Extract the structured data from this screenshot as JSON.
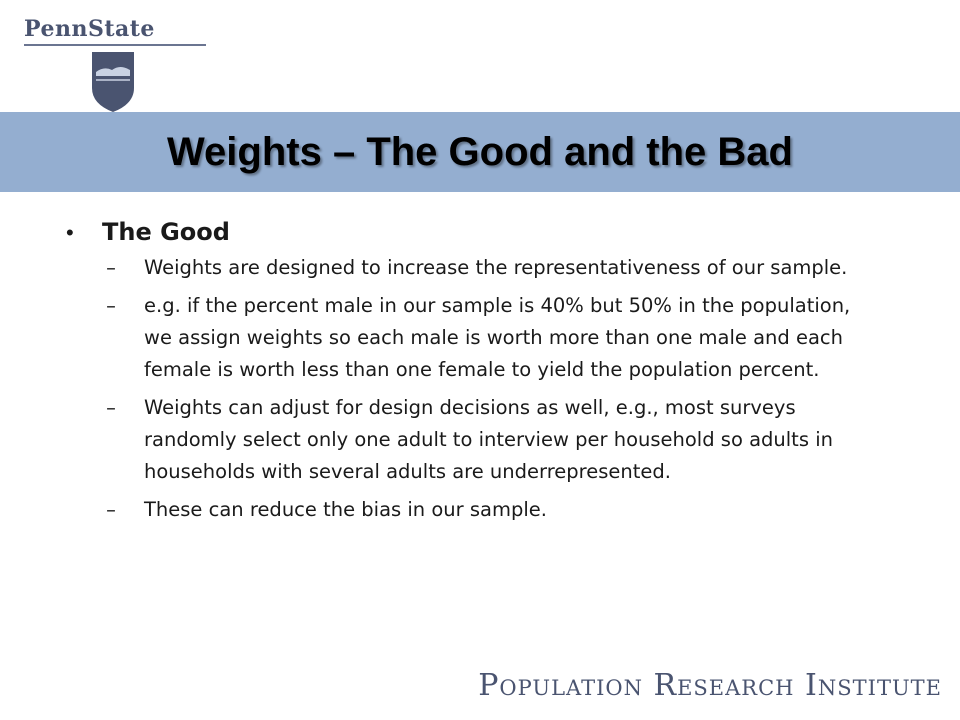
{
  "logo": {
    "wordmark": "PennState"
  },
  "slide": {
    "title": "Weights – The Good and the Bad"
  },
  "content": {
    "bullet_label": "The Good",
    "dash": "–",
    "items": [
      "Weights are designed to increase the representativeness of our sample.",
      "e.g. if the percent male in our sample is 40% but 50% in the population, we assign weights so each male is worth more than one male and each female is worth less than one female to yield the population percent.",
      "Weights can adjust for design decisions as well, e.g., most surveys randomly select only one adult to interview per household so adults in households with several adults are underrepresented.",
      "These can reduce the bias in our sample."
    ]
  },
  "footer": {
    "institute": "Population Research Institute"
  },
  "colors": {
    "title_band": "#94aed0",
    "logo": "#4a5470"
  }
}
